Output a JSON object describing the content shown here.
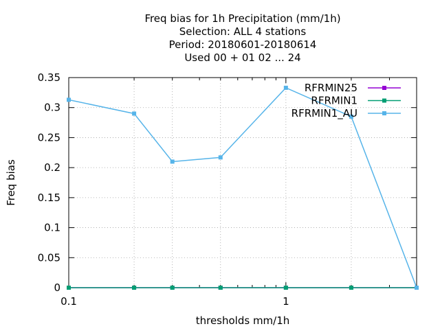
{
  "chart_data": {
    "type": "line",
    "title": [
      "Freq bias  for 1h Precipitation (mm/1h)",
      "Selection: ALL      4 stations",
      "Period: 20180601-20180614",
      "Used  00 + 01 02 ... 24"
    ],
    "xlabel": "thresholds mm/1h",
    "ylabel": "Freq bias",
    "xscale": "log",
    "xlim": [
      0.1,
      4
    ],
    "ylim": [
      0,
      0.35
    ],
    "xticks": [
      {
        "value": 0.1,
        "label": "0.1"
      },
      {
        "value": 1,
        "label": "1"
      }
    ],
    "yticks": [
      {
        "value": 0,
        "label": "0"
      },
      {
        "value": 0.05,
        "label": "0.05"
      },
      {
        "value": 0.1,
        "label": "0.1"
      },
      {
        "value": 0.15,
        "label": "0.15"
      },
      {
        "value": 0.2,
        "label": "0.2"
      },
      {
        "value": 0.25,
        "label": "0.25"
      },
      {
        "value": 0.3,
        "label": "0.3"
      },
      {
        "value": 0.35,
        "label": "0.35"
      }
    ],
    "grid": true,
    "legend_position": "top-right",
    "x": [
      0.1,
      0.2,
      0.3,
      0.5,
      1,
      2,
      4
    ],
    "series": [
      {
        "name": "RFRMIN25",
        "color": "#9400d3",
        "values": [
          0,
          0,
          0,
          0,
          0,
          0,
          0
        ]
      },
      {
        "name": "RFRMIN1",
        "color": "#009e73",
        "values": [
          0,
          0,
          0,
          0,
          0,
          0,
          0
        ]
      },
      {
        "name": "RFRMIN1_AU",
        "color": "#56b4e9",
        "values": [
          0.313,
          0.29,
          0.21,
          0.217,
          0.333,
          0.285,
          0
        ]
      }
    ]
  }
}
